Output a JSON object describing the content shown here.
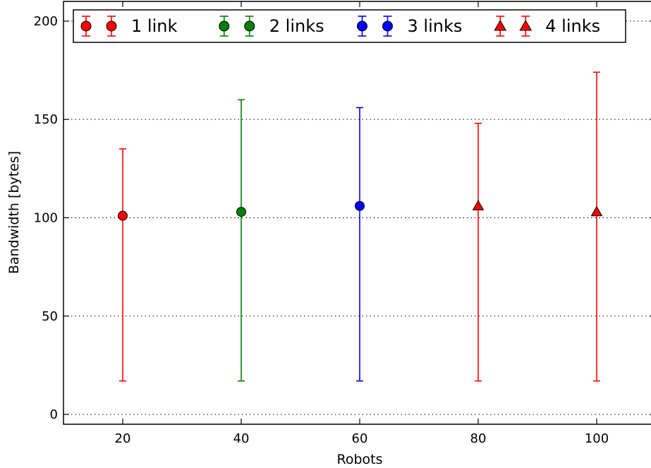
{
  "chart_data": {
    "type": "scatter",
    "xlabel": "Robots",
    "ylabel": "Bandwidth [bytes]",
    "xlim": [
      10,
      110
    ],
    "ylim": [
      -5,
      210
    ],
    "xticks": [
      20,
      40,
      60,
      80,
      100
    ],
    "yticks": [
      0,
      50,
      100,
      150,
      200
    ],
    "grid": "horizontal-dotted",
    "legend_position": "top",
    "series": [
      {
        "name": "1 link",
        "color": "#ff0000",
        "marker": "circle",
        "points": [
          {
            "x": 20,
            "y": 101,
            "low": 17,
            "high": 135
          }
        ]
      },
      {
        "name": "2 links",
        "color": "#008000",
        "marker": "circle",
        "points": [
          {
            "x": 40,
            "y": 103,
            "low": 17,
            "high": 160
          }
        ]
      },
      {
        "name": "3 links",
        "color": "#0000ff",
        "marker": "circle",
        "points": [
          {
            "x": 60,
            "y": 106,
            "low": 17,
            "high": 156
          }
        ]
      },
      {
        "name": "4 links",
        "color": "#ff0000",
        "marker": "triangle",
        "points": [
          {
            "x": 80,
            "y": 106,
            "low": 17,
            "high": 148
          },
          {
            "x": 100,
            "y": 103,
            "low": 17,
            "high": 174
          }
        ]
      }
    ]
  }
}
